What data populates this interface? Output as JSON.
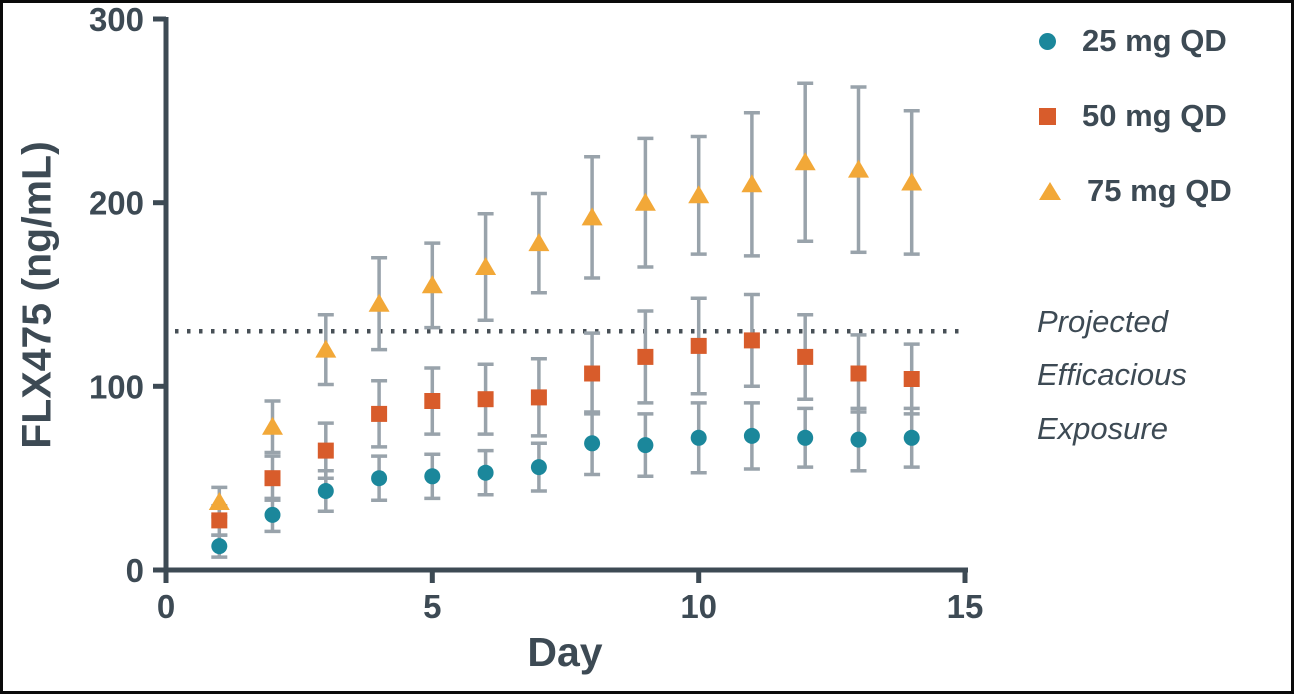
{
  "chart_data": {
    "type": "scatter",
    "title": "",
    "xlabel": "Day",
    "ylabel": "FLX475 (ng/mL)",
    "xlim": [
      0,
      15
    ],
    "ylim": [
      0,
      300
    ],
    "x_ticks": [
      0,
      5,
      10,
      15
    ],
    "y_ticks": [
      0,
      100,
      200,
      300
    ],
    "grid": false,
    "legend_position": "right",
    "x": [
      1,
      2,
      3,
      4,
      5,
      6,
      7,
      8,
      9,
      10,
      11,
      12,
      13,
      14
    ],
    "series": [
      {
        "name": "25 mg QD",
        "marker": "circle",
        "color": "#1b879b",
        "values": [
          13,
          30,
          43,
          50,
          51,
          53,
          56,
          69,
          68,
          72,
          73,
          72,
          71,
          72
        ],
        "error": [
          6,
          9,
          11,
          12,
          12,
          12,
          13,
          17,
          17,
          19,
          18,
          16,
          17,
          16
        ]
      },
      {
        "name": "50 mg QD",
        "marker": "square",
        "color": "#d85c2b",
        "values": [
          27,
          50,
          65,
          85,
          92,
          93,
          94,
          107,
          116,
          122,
          125,
          116,
          107,
          104
        ],
        "error": [
          8,
          12,
          15,
          18,
          18,
          19,
          21,
          22,
          25,
          26,
          25,
          23,
          21,
          19
        ]
      },
      {
        "name": "75 mg QD",
        "marker": "triangle",
        "color": "#f2a838",
        "values": [
          37,
          78,
          120,
          145,
          155,
          165,
          178,
          192,
          200,
          204,
          210,
          222,
          218,
          211
        ],
        "error": [
          8,
          14,
          19,
          25,
          23,
          29,
          27,
          33,
          35,
          32,
          39,
          43,
          45,
          39
        ]
      }
    ],
    "reference_line": {
      "y": 130,
      "style": "dotted",
      "label": "Projected Efficacious Exposure",
      "label_lines": [
        "Projected",
        "Efficacious",
        "Exposure"
      ]
    },
    "error_bar_color": "#99a3ab",
    "axis_color": "#3d4a54",
    "reference_line_color": "#474f56"
  }
}
